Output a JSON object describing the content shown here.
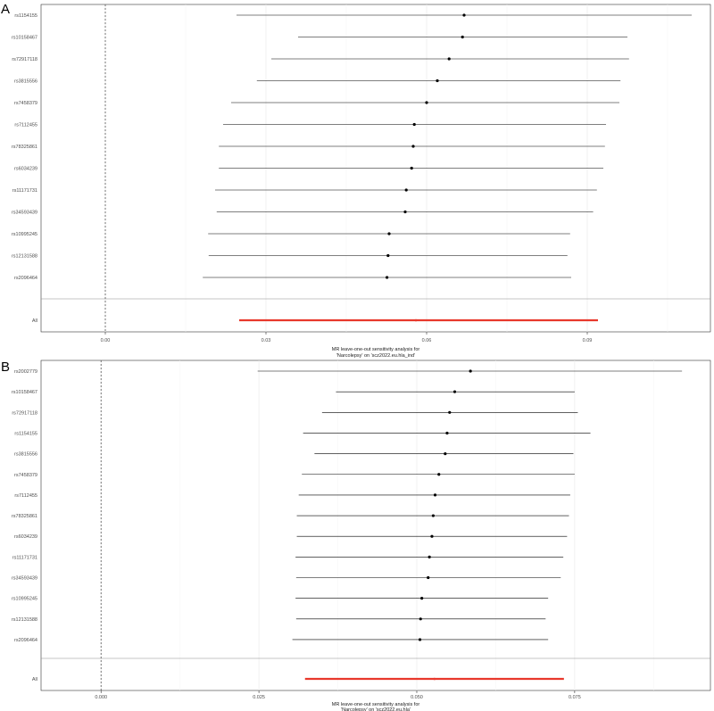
{
  "figure": {
    "panels": [
      "A",
      "B"
    ]
  },
  "chart_data": [
    {
      "type": "scatter",
      "panel": "A",
      "xlabel_line1": "MR leave-one-out sensitivity analysis for",
      "xlabel_line2": "'Narcolepsy' on 'scz2022.eu.hla_ind'",
      "xlim": [
        -0.012,
        0.113
      ],
      "x_ticks": [
        0.0,
        0.03,
        0.06,
        0.09
      ],
      "x_tick_labels": [
        "0.00",
        "0.03",
        "0.06",
        "0.09"
      ],
      "grid": true,
      "legend": "none",
      "point_color": "#000000",
      "line_color": "#000000",
      "summary_color": "#e8382c",
      "reference_line_x": 0,
      "rows": [
        {
          "label": "rs1154155",
          "est": 0.067,
          "lo": 0.0245,
          "hi": 0.1095
        },
        {
          "label": "rs10158467",
          "est": 0.0667,
          "lo": 0.036,
          "hi": 0.0975
        },
        {
          "label": "rs72917118",
          "est": 0.0642,
          "lo": 0.031,
          "hi": 0.0978
        },
        {
          "label": "rs3815556",
          "est": 0.062,
          "lo": 0.0283,
          "hi": 0.0962
        },
        {
          "label": "rs7458379",
          "est": 0.06,
          "lo": 0.0235,
          "hi": 0.096
        },
        {
          "label": "rs7112455",
          "est": 0.0577,
          "lo": 0.022,
          "hi": 0.0935
        },
        {
          "label": "rs78325861",
          "est": 0.0575,
          "lo": 0.0212,
          "hi": 0.0933
        },
        {
          "label": "rs6034239",
          "est": 0.0572,
          "lo": 0.0212,
          "hi": 0.093
        },
        {
          "label": "rs11171731",
          "est": 0.0562,
          "lo": 0.0205,
          "hi": 0.0918
        },
        {
          "label": "rs34593439",
          "est": 0.056,
          "lo": 0.0208,
          "hi": 0.0911
        },
        {
          "label": "rs10995245",
          "est": 0.053,
          "lo": 0.0192,
          "hi": 0.0868
        },
        {
          "label": "rs12131588",
          "est": 0.0528,
          "lo": 0.0193,
          "hi": 0.0863
        },
        {
          "label": "rs2096464",
          "est": 0.0526,
          "lo": 0.0182,
          "hi": 0.087
        }
      ],
      "summary": {
        "label": "All",
        "est": 0.058,
        "lo": 0.025,
        "hi": 0.092
      }
    },
    {
      "type": "scatter",
      "panel": "B",
      "xlabel_line1": "MR leave-one-out sensitivity analysis for",
      "xlabel_line2": "'Narcolepsy' on 'scz2022.eu.hla'",
      "xlim": [
        -0.0095,
        0.0965
      ],
      "x_ticks": [
        0.0,
        0.025,
        0.05,
        0.075
      ],
      "x_tick_labels": [
        "0.000",
        "0.025",
        "0.050",
        "0.075"
      ],
      "grid": true,
      "legend": "none",
      "point_color": "#000000",
      "line_color": "#000000",
      "summary_color": "#e8382c",
      "reference_line_x": 0,
      "rows": [
        {
          "label": "rs2002779",
          "est": 0.0585,
          "lo": 0.0248,
          "hi": 0.092
        },
        {
          "label": "rs10158467",
          "est": 0.056,
          "lo": 0.0372,
          "hi": 0.075
        },
        {
          "label": "rs72917118",
          "est": 0.0552,
          "lo": 0.035,
          "hi": 0.0755
        },
        {
          "label": "rs1154155",
          "est": 0.0548,
          "lo": 0.032,
          "hi": 0.0775
        },
        {
          "label": "rs3815556",
          "est": 0.0545,
          "lo": 0.0338,
          "hi": 0.0748
        },
        {
          "label": "rs7458379",
          "est": 0.0535,
          "lo": 0.0318,
          "hi": 0.075
        },
        {
          "label": "rs7112455",
          "est": 0.0529,
          "lo": 0.0313,
          "hi": 0.0743
        },
        {
          "label": "rs78325861",
          "est": 0.0526,
          "lo": 0.031,
          "hi": 0.0741
        },
        {
          "label": "rs6034239",
          "est": 0.0524,
          "lo": 0.031,
          "hi": 0.0738
        },
        {
          "label": "rs11171731",
          "est": 0.052,
          "lo": 0.0308,
          "hi": 0.0732
        },
        {
          "label": "rs34593439",
          "est": 0.0518,
          "lo": 0.0309,
          "hi": 0.0728
        },
        {
          "label": "rs10995245",
          "est": 0.0508,
          "lo": 0.0308,
          "hi": 0.0708
        },
        {
          "label": "rs12131588",
          "est": 0.0506,
          "lo": 0.0309,
          "hi": 0.0704
        },
        {
          "label": "rs2096464",
          "est": 0.0505,
          "lo": 0.0303,
          "hi": 0.0708
        }
      ],
      "summary": {
        "label": "All",
        "est": 0.0528,
        "lo": 0.0323,
        "hi": 0.0733
      }
    }
  ]
}
